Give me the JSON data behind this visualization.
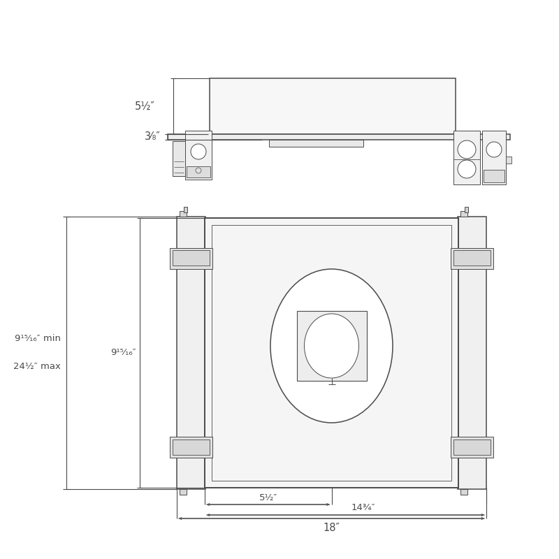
{
  "bg_color": "#ffffff",
  "lc": "#4a4a4a",
  "lc2": "#666666",
  "fig_size": [
    8.0,
    8.0
  ],
  "dpi": 100,
  "dim_5_5_top": "5½″",
  "dim_3_8": "3⁄₈″",
  "dim_9_15_16_min": "9¹⁵⁄₁₆″ min",
  "dim_24_5_max": "24½″ max",
  "dim_9_15_16": "9¹⁵⁄₁₆″",
  "dim_5_5_bot": "5½″",
  "dim_14_75": "14¾″",
  "dim_18": "18″"
}
